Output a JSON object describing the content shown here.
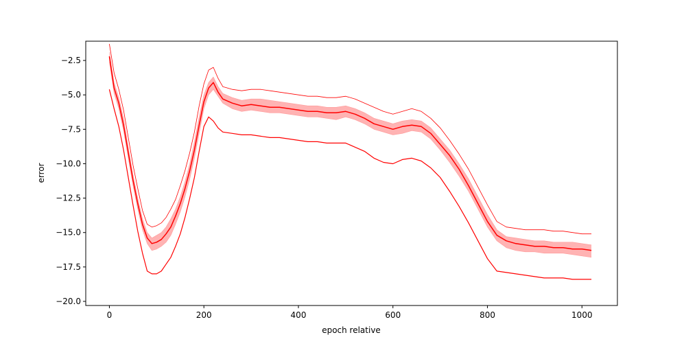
{
  "chart_data": {
    "type": "line",
    "title": "",
    "xlabel": "epoch relative",
    "ylabel": "error",
    "xlim": [
      -50,
      1075
    ],
    "ylim": [
      -20.3,
      -1.1
    ],
    "x_ticks": [
      0,
      200,
      400,
      600,
      800,
      1000
    ],
    "x_tick_labels": [
      "0",
      "200",
      "400",
      "600",
      "800",
      "1000"
    ],
    "y_ticks": [
      -2.5,
      -5.0,
      -7.5,
      -10.0,
      -12.5,
      -15.0,
      -17.5,
      -20.0
    ],
    "y_tick_labels": [
      "−2.5",
      "−5.0",
      "−7.5",
      "−10.0",
      "−12.5",
      "−15.0",
      "−17.5",
      "−20.0"
    ],
    "grid": false,
    "legend": "none",
    "colors": {
      "line": "#ff0000",
      "band": "#ffb3b3"
    },
    "x": [
      0,
      10,
      20,
      30,
      40,
      50,
      60,
      70,
      80,
      90,
      100,
      110,
      120,
      130,
      140,
      150,
      160,
      170,
      180,
      190,
      200,
      210,
      220,
      230,
      240,
      260,
      280,
      300,
      320,
      340,
      360,
      380,
      400,
      420,
      440,
      460,
      480,
      500,
      520,
      540,
      560,
      580,
      600,
      620,
      640,
      660,
      680,
      700,
      720,
      740,
      760,
      780,
      800,
      820,
      840,
      860,
      880,
      900,
      920,
      940,
      960,
      980,
      1000,
      1020
    ],
    "series": [
      {
        "role": "band-lower",
        "values": [
          -2.6,
          -4.9,
          -6.0,
          -7.6,
          -9.6,
          -11.6,
          -13.3,
          -14.8,
          -15.8,
          -16.3,
          -16.2,
          -16.0,
          -15.7,
          -15.2,
          -14.4,
          -13.5,
          -12.4,
          -11.1,
          -9.6,
          -7.8,
          -6.0,
          -5.0,
          -4.6,
          -5.1,
          -5.6,
          -6.0,
          -6.2,
          -6.1,
          -6.2,
          -6.3,
          -6.3,
          -6.4,
          -6.5,
          -6.6,
          -6.6,
          -6.7,
          -6.8,
          -6.6,
          -6.8,
          -7.1,
          -7.5,
          -7.7,
          -7.9,
          -7.8,
          -7.6,
          -7.7,
          -8.2,
          -9.0,
          -9.9,
          -10.9,
          -12.0,
          -13.3,
          -14.6,
          -15.6,
          -16.1,
          -16.3,
          -16.4,
          -16.4,
          -16.5,
          -16.5,
          -16.5,
          -16.6,
          -16.7,
          -16.8
        ]
      },
      {
        "role": "band-upper",
        "values": [
          -1.9,
          -4.1,
          -5.2,
          -6.7,
          -8.8,
          -10.8,
          -12.5,
          -14.0,
          -15.0,
          -15.4,
          -15.2,
          -15.0,
          -14.6,
          -14.0,
          -13.3,
          -12.4,
          -11.3,
          -10.0,
          -8.4,
          -6.6,
          -5.0,
          -4.1,
          -3.7,
          -4.4,
          -4.9,
          -5.2,
          -5.4,
          -5.3,
          -5.3,
          -5.4,
          -5.5,
          -5.6,
          -5.7,
          -5.8,
          -5.8,
          -5.9,
          -5.9,
          -5.8,
          -6.0,
          -6.3,
          -6.7,
          -6.9,
          -7.1,
          -6.9,
          -6.8,
          -6.9,
          -7.4,
          -8.2,
          -9.0,
          -10.0,
          -11.1,
          -12.4,
          -13.7,
          -14.8,
          -15.3,
          -15.4,
          -15.5,
          -15.6,
          -15.6,
          -15.7,
          -15.7,
          -15.7,
          -15.8,
          -15.9
        ]
      },
      {
        "role": "mean",
        "values": [
          -2.2,
          -4.5,
          -5.6,
          -7.2,
          -9.2,
          -11.2,
          -12.9,
          -14.4,
          -15.4,
          -15.8,
          -15.7,
          -15.5,
          -15.1,
          -14.6,
          -13.8,
          -12.9,
          -11.8,
          -10.5,
          -9.0,
          -7.2,
          -5.5,
          -4.5,
          -4.1,
          -4.8,
          -5.3,
          -5.6,
          -5.8,
          -5.7,
          -5.8,
          -5.9,
          -5.9,
          -6.0,
          -6.1,
          -6.2,
          -6.2,
          -6.3,
          -6.3,
          -6.2,
          -6.4,
          -6.7,
          -7.1,
          -7.3,
          -7.5,
          -7.3,
          -7.2,
          -7.3,
          -7.8,
          -8.6,
          -9.4,
          -10.4,
          -11.6,
          -12.9,
          -14.2,
          -15.2,
          -15.6,
          -15.8,
          -15.9,
          -16.0,
          -16.0,
          -16.1,
          -16.1,
          -16.2,
          -16.2,
          -16.3
        ]
      },
      {
        "role": "max",
        "values": [
          -1.3,
          -3.4,
          -4.6,
          -6.1,
          -8.1,
          -10.1,
          -11.8,
          -13.4,
          -14.4,
          -14.6,
          -14.5,
          -14.3,
          -13.9,
          -13.3,
          -12.6,
          -11.6,
          -10.5,
          -9.2,
          -7.7,
          -5.8,
          -4.2,
          -3.2,
          -3.0,
          -3.8,
          -4.4,
          -4.6,
          -4.7,
          -4.6,
          -4.6,
          -4.7,
          -4.8,
          -4.9,
          -5.0,
          -5.1,
          -5.1,
          -5.2,
          -5.2,
          -5.1,
          -5.3,
          -5.6,
          -5.9,
          -6.2,
          -6.4,
          -6.2,
          -6.0,
          -6.2,
          -6.7,
          -7.4,
          -8.3,
          -9.3,
          -10.4,
          -11.7,
          -13.0,
          -14.2,
          -14.6,
          -14.7,
          -14.8,
          -14.8,
          -14.8,
          -14.9,
          -14.9,
          -15.0,
          -15.1,
          -15.1
        ]
      },
      {
        "role": "min",
        "values": [
          -4.6,
          -6.0,
          -7.3,
          -9.0,
          -11.0,
          -13.0,
          -14.9,
          -16.5,
          -17.8,
          -18.0,
          -18.0,
          -17.8,
          -17.3,
          -16.8,
          -16.0,
          -15.1,
          -13.9,
          -12.5,
          -11.0,
          -9.1,
          -7.3,
          -6.6,
          -6.9,
          -7.4,
          -7.7,
          -7.8,
          -7.9,
          -7.9,
          -8.0,
          -8.1,
          -8.1,
          -8.2,
          -8.3,
          -8.4,
          -8.4,
          -8.5,
          -8.5,
          -8.5,
          -8.8,
          -9.1,
          -9.6,
          -9.9,
          -10.0,
          -9.7,
          -9.6,
          -9.8,
          -10.3,
          -11.0,
          -12.0,
          -13.1,
          -14.3,
          -15.6,
          -16.9,
          -17.8,
          -17.9,
          -18.0,
          -18.1,
          -18.2,
          -18.3,
          -18.3,
          -18.3,
          -18.4,
          -18.4,
          -18.4
        ]
      }
    ]
  }
}
